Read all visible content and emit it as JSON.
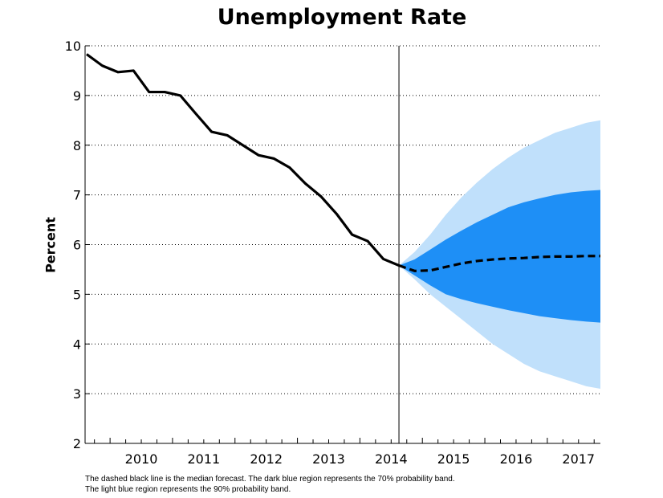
{
  "chart_data": {
    "type": "line",
    "title": "Unemployment Rate",
    "xlabel": "",
    "ylabel": "Percent",
    "ylim": [
      2,
      10
    ],
    "yticks": [
      2,
      3,
      4,
      5,
      6,
      7,
      8,
      9,
      10
    ],
    "xlim": [
      2009.6,
      2017.85
    ],
    "xtick_labels": [
      "2010",
      "2011",
      "2012",
      "2013",
      "2014",
      "2015",
      "2016",
      "2017"
    ],
    "forecast_start": 2014.625,
    "grid": "horizontal dotted",
    "series": [
      {
        "kind": "history",
        "x": [
          2009.625,
          2009.875,
          2010.125,
          2010.375,
          2010.625,
          2010.875,
          2011.125,
          2011.375,
          2011.625,
          2011.875,
          2012.125,
          2012.375,
          2012.625,
          2012.875,
          2013.125,
          2013.375,
          2013.625,
          2013.875,
          2014.125,
          2014.375,
          2014.625
        ],
        "values": [
          9.83,
          9.6,
          9.47,
          9.5,
          9.07,
          9.07,
          9.0,
          8.63,
          8.27,
          8.2,
          8.0,
          7.8,
          7.73,
          7.55,
          7.23,
          6.97,
          6.62,
          6.2,
          6.07,
          5.71,
          5.58
        ]
      },
      {
        "kind": "median-forecast",
        "x": [
          2014.625,
          2014.875,
          2015.125,
          2015.375,
          2015.625,
          2015.875,
          2016.125,
          2016.375,
          2016.625,
          2016.875,
          2017.125,
          2017.375,
          2017.625,
          2017.85
        ],
        "values": [
          5.58,
          5.47,
          5.48,
          5.55,
          5.62,
          5.67,
          5.7,
          5.72,
          5.73,
          5.75,
          5.76,
          5.76,
          5.77,
          5.77
        ]
      }
    ],
    "bands": [
      {
        "level": "90%",
        "color": "#c0e0fb",
        "x": [
          2014.625,
          2014.875,
          2015.125,
          2015.375,
          2015.625,
          2015.875,
          2016.125,
          2016.375,
          2016.625,
          2016.875,
          2017.125,
          2017.375,
          2017.625,
          2017.85
        ],
        "upper": [
          5.58,
          5.85,
          6.2,
          6.6,
          6.95,
          7.25,
          7.52,
          7.75,
          7.95,
          8.1,
          8.25,
          8.35,
          8.45,
          8.5
        ],
        "lower": [
          5.58,
          5.3,
          5.0,
          4.75,
          4.5,
          4.25,
          4.0,
          3.8,
          3.6,
          3.45,
          3.35,
          3.25,
          3.15,
          3.1
        ]
      },
      {
        "level": "70%",
        "color": "#1e8ff6",
        "x": [
          2014.625,
          2014.875,
          2015.125,
          2015.375,
          2015.625,
          2015.875,
          2016.125,
          2016.375,
          2016.625,
          2016.875,
          2017.125,
          2017.375,
          2017.625,
          2017.85
        ],
        "upper": [
          5.58,
          5.7,
          5.9,
          6.1,
          6.28,
          6.45,
          6.6,
          6.75,
          6.85,
          6.93,
          7.0,
          7.05,
          7.08,
          7.1
        ],
        "lower": [
          5.58,
          5.38,
          5.18,
          5.0,
          4.9,
          4.82,
          4.75,
          4.68,
          4.62,
          4.56,
          4.52,
          4.48,
          4.45,
          4.43
        ]
      }
    ],
    "colors": {
      "history": "#000000",
      "median": "#000000",
      "band70": "#1e8ff6",
      "band90": "#c0e0fb"
    }
  },
  "footnotes": {
    "line1": "The dashed black line is the median forecast. The dark blue region represents the 70% probability band.",
    "line2": "The light blue region represents the 90% probability band."
  }
}
